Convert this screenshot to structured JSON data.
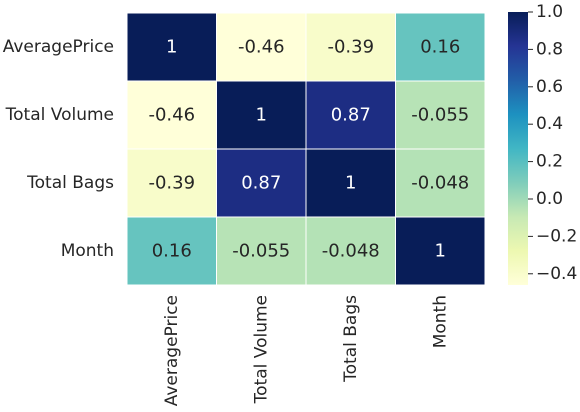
{
  "chart_data": {
    "type": "heatmap",
    "title": "",
    "rows": [
      "AveragePrice",
      "Total Volume",
      "Total Bags",
      "Month"
    ],
    "columns": [
      "AveragePrice",
      "Total Volume",
      "Total Bags",
      "Month"
    ],
    "values": [
      [
        1,
        -0.46,
        -0.39,
        0.16
      ],
      [
        -0.46,
        1,
        0.87,
        -0.055
      ],
      [
        -0.39,
        0.87,
        1,
        -0.048
      ],
      [
        0.16,
        -0.055,
        -0.048,
        1
      ]
    ],
    "value_labels": [
      [
        "1",
        "-0.46",
        "-0.39",
        "0.16"
      ],
      [
        "-0.46",
        "1",
        "0.87",
        "-0.055"
      ],
      [
        "-0.39",
        "0.87",
        "1",
        "-0.048"
      ],
      [
        "0.16",
        "-0.055",
        "-0.048",
        "1"
      ]
    ],
    "colormap": "YlGnBu",
    "vmin": -0.46,
    "vmax": 1,
    "colorbar": {
      "ticks": [
        1.0,
        0.8,
        0.6,
        0.4,
        0.2,
        0.0,
        -0.2,
        -0.4
      ],
      "tick_labels": [
        "1.0",
        "0.8",
        "0.6",
        "0.4",
        "0.2",
        "0.0",
        "−0.2",
        "−0.4"
      ]
    },
    "annotations": true,
    "gridlines": "white"
  }
}
